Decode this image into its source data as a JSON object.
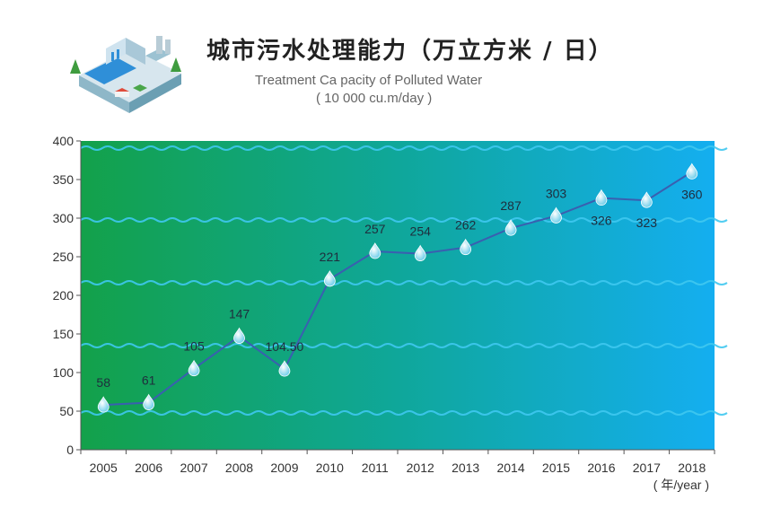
{
  "title": {
    "zh": "城市污水处理能力（万立方米 / 日）",
    "en": "Treatment Ca pacity of Polluted Water",
    "unit": "( 10 000 cu.m/day )"
  },
  "colors": {
    "gradient_start": "#13a14a",
    "gradient_mid": "#0fa79a",
    "gradient_end": "#14aef0",
    "line": "#3a5fb0",
    "wave": "#3fc8f0",
    "marker": "#8fe3f2"
  },
  "chart_data": {
    "type": "line",
    "x": [
      "2005",
      "2006",
      "2007",
      "2008",
      "2009",
      "2010",
      "2011",
      "2012",
      "2013",
      "2014",
      "2015",
      "2016",
      "2017",
      "2018"
    ],
    "values": [
      58,
      61,
      105,
      147,
      104.5,
      221,
      257,
      254,
      262,
      287,
      303,
      326,
      323,
      360
    ],
    "data_labels": [
      "58",
      "61",
      "105",
      "147",
      "104.50",
      "221",
      "257",
      "254",
      "262",
      "287",
      "303",
      "326",
      "323",
      "360"
    ],
    "yticks": [
      "0",
      "50",
      "100",
      "150",
      "200",
      "250",
      "300",
      "350",
      "400"
    ],
    "ylim": [
      0,
      400
    ],
    "xlabel": "( 年/year )",
    "ylabel": "",
    "grid": false,
    "legend": "none"
  }
}
